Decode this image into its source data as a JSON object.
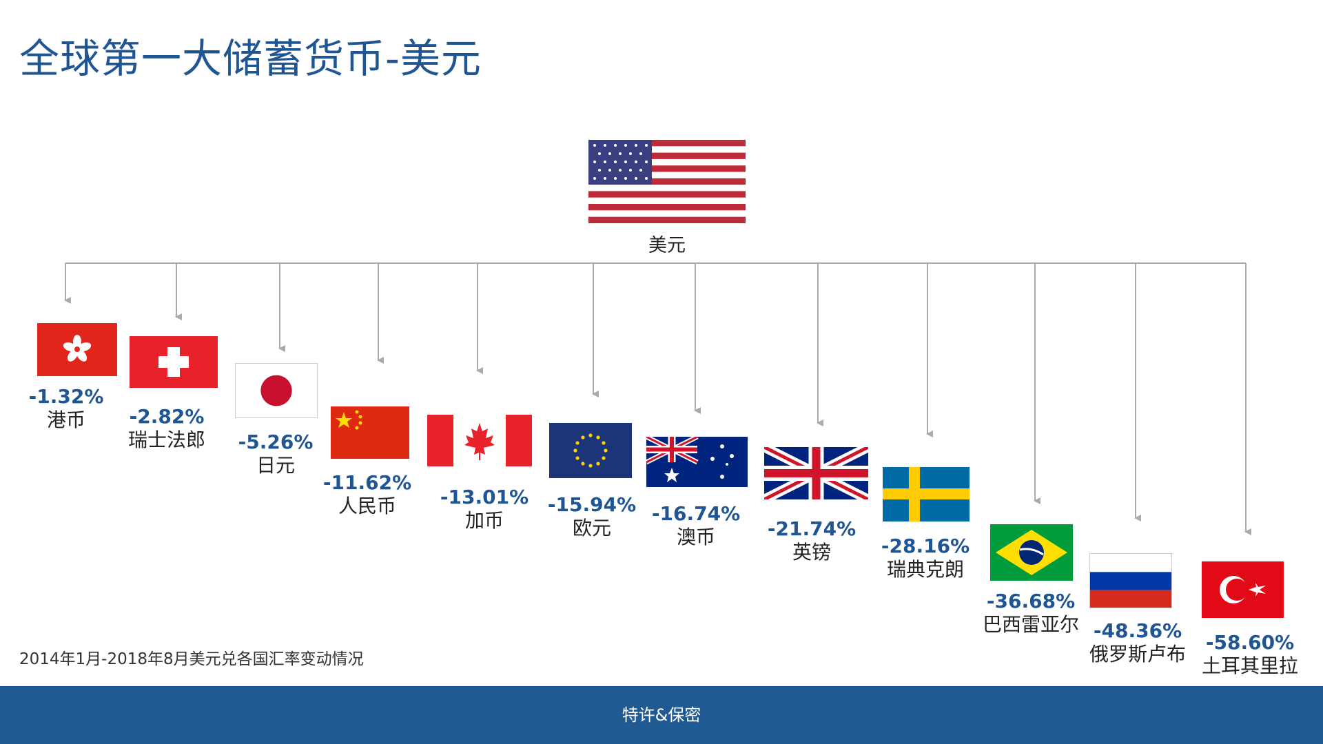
{
  "title": "全球第一大储蓄货币-美元",
  "root": {
    "name": "美元",
    "flag_icon": "us-flag-icon"
  },
  "currencies": [
    {
      "change": "-1.32%",
      "name": "港币",
      "flag_icon": "hong-kong-flag-icon"
    },
    {
      "change": "-2.82%",
      "name": "瑞士法郎",
      "flag_icon": "switzerland-flag-icon"
    },
    {
      "change": "-5.26%",
      "name": "日元",
      "flag_icon": "japan-flag-icon"
    },
    {
      "change": "-11.62%",
      "name": "人民币",
      "flag_icon": "china-flag-icon"
    },
    {
      "change": "-13.01%",
      "name": "加币",
      "flag_icon": "canada-flag-icon"
    },
    {
      "change": "-15.94%",
      "name": "欧元",
      "flag_icon": "eu-flag-icon"
    },
    {
      "change": "-16.74%",
      "name": "澳币",
      "flag_icon": "australia-flag-icon"
    },
    {
      "change": "-21.74%",
      "name": "英镑",
      "flag_icon": "uk-flag-icon"
    },
    {
      "change": "-28.16%",
      "name": "瑞典克朗",
      "flag_icon": "sweden-flag-icon"
    },
    {
      "change": "-36.68%",
      "name": "巴西雷亚尔",
      "flag_icon": "brazil-flag-icon"
    },
    {
      "change": "-48.36%",
      "name": "俄罗斯卢布",
      "flag_icon": "russia-flag-icon"
    },
    {
      "change": "-58.60%",
      "name": "土耳其里拉",
      "flag_icon": "turkey-flag-icon"
    }
  ],
  "footnote": "2014年1月-2018年8月美元兑各国汇率变动情况",
  "footer": "特许&保密",
  "colors": {
    "title": "#1f5592",
    "value": "#1f5592",
    "footer_bg": "#1f5a92",
    "connector": "#aaaaaa"
  }
}
